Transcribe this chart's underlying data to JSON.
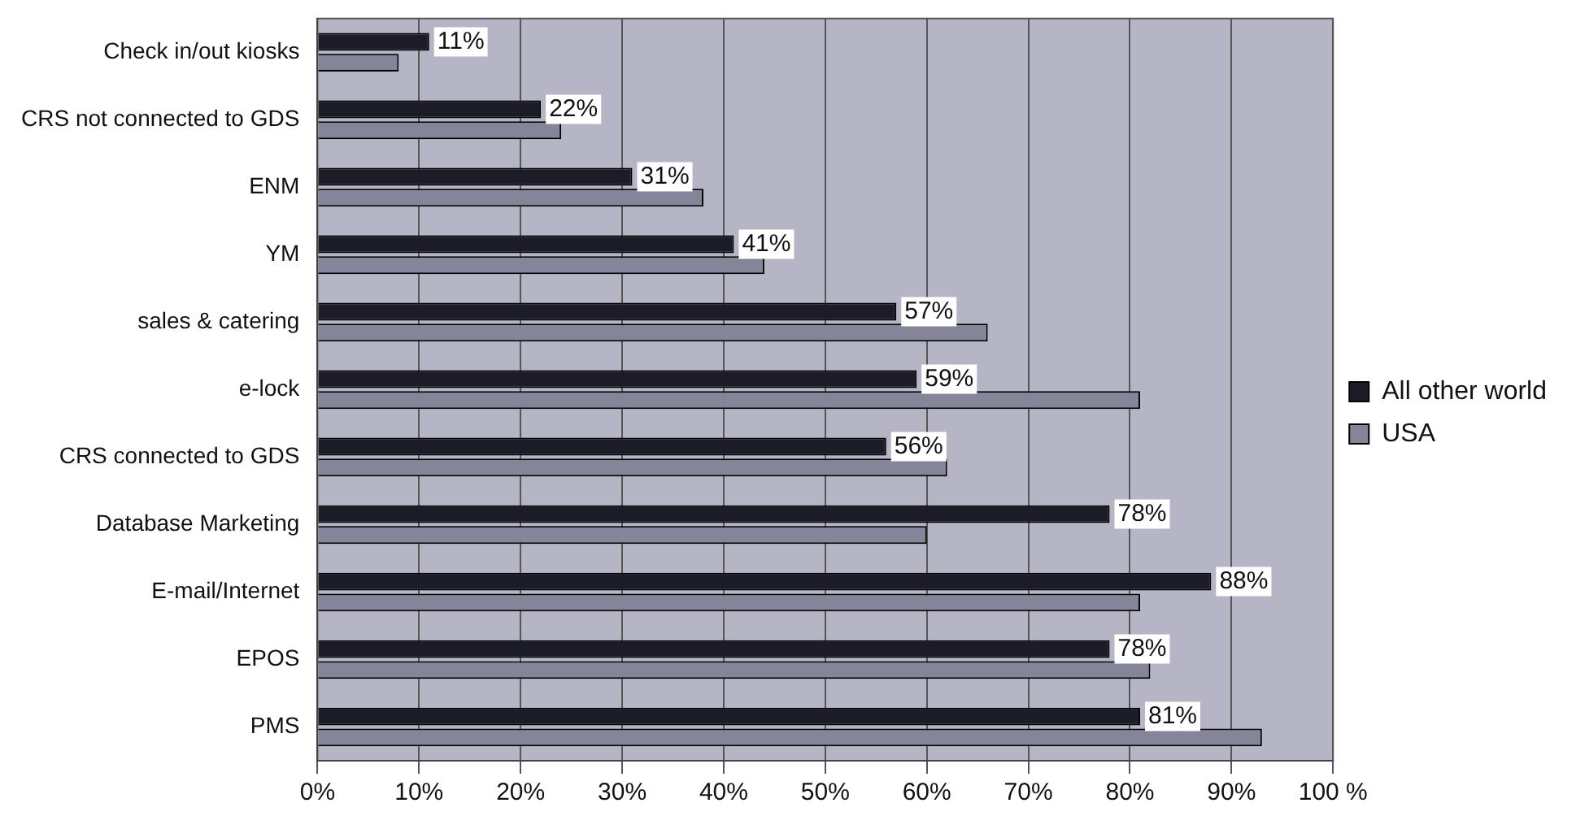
{
  "chart_data": {
    "type": "bar",
    "orientation": "horizontal",
    "categories": [
      "Check in/out kiosks",
      "CRS not connected to GDS",
      "ENM",
      "YM",
      "sales & catering",
      "e-lock",
      "CRS connected to GDS",
      "Database Marketing",
      "E-mail/Internet",
      "EPOS",
      "PMS"
    ],
    "series": [
      {
        "name": "All other world",
        "color": "#1c1c28",
        "values": [
          11,
          22,
          31,
          41,
          57,
          59,
          56,
          78,
          88,
          78,
          81
        ],
        "value_labels": [
          "11%",
          "22%",
          "31%",
          "41%",
          "57%",
          "59%",
          "56%",
          "78%",
          "88%",
          "78%",
          "81%"
        ]
      },
      {
        "name": "USA",
        "color": "#85859a",
        "values": [
          8,
          24,
          38,
          44,
          66,
          81,
          62,
          60,
          81,
          82,
          93
        ]
      }
    ],
    "xlim": [
      0,
      100
    ],
    "xticks": [
      {
        "value": 0,
        "label": "0%"
      },
      {
        "value": 10,
        "label": "10%"
      },
      {
        "value": 20,
        "label": "20%"
      },
      {
        "value": 30,
        "label": "30%"
      },
      {
        "value": 40,
        "label": "40%"
      },
      {
        "value": 50,
        "label": "50%"
      },
      {
        "value": 60,
        "label": "60%"
      },
      {
        "value": 70,
        "label": "70%"
      },
      {
        "value": 80,
        "label": "80%"
      },
      {
        "value": 90,
        "label": "90%"
      },
      {
        "value": 100,
        "label": "100 %"
      }
    ],
    "grid": "x",
    "legend": "right"
  }
}
